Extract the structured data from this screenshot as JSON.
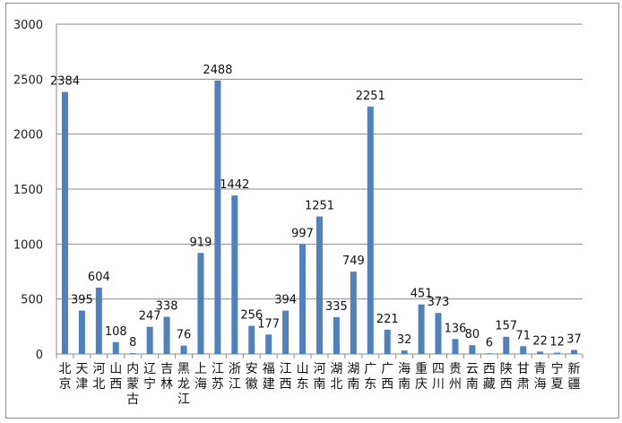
{
  "chart_data": {
    "type": "bar",
    "categories": [
      "北京",
      "天津",
      "河北",
      "山西",
      "内蒙古",
      "辽宁",
      "吉林",
      "黑龙江",
      "上海",
      "江苏",
      "浙江",
      "安徽",
      "福建",
      "江西",
      "山东",
      "河南",
      "湖北",
      "湖南",
      "广东",
      "广西",
      "海南",
      "重庆",
      "四川",
      "贵州",
      "云南",
      "西藏",
      "陕西",
      "甘肃",
      "青海",
      "宁夏",
      "新疆"
    ],
    "values": [
      2384,
      395,
      604,
      108,
      8,
      247,
      338,
      76,
      919,
      2488,
      1442,
      256,
      177,
      394,
      997,
      1251,
      335,
      749,
      2251,
      221,
      32,
      451,
      373,
      136,
      80,
      6,
      157,
      71,
      22,
      12,
      37
    ],
    "ylim": [
      0,
      3000
    ],
    "yticks": [
      0,
      500,
      1000,
      1500,
      2000,
      2500,
      3000
    ],
    "grid": true,
    "bar_color": "#4f81bd",
    "data_labels": true
  }
}
